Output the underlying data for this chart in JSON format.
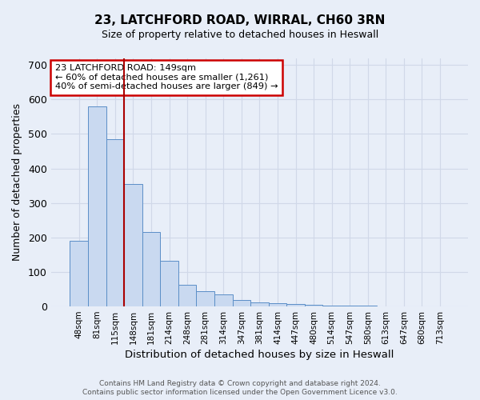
{
  "title1": "23, LATCHFORD ROAD, WIRRAL, CH60 3RN",
  "title2": "Size of property relative to detached houses in Heswall",
  "xlabel": "Distribution of detached houses by size in Heswall",
  "ylabel": "Number of detached properties",
  "categories": [
    "48sqm",
    "81sqm",
    "115sqm",
    "148sqm",
    "181sqm",
    "214sqm",
    "248sqm",
    "281sqm",
    "314sqm",
    "347sqm",
    "381sqm",
    "414sqm",
    "447sqm",
    "480sqm",
    "514sqm",
    "547sqm",
    "580sqm",
    "613sqm",
    "647sqm",
    "680sqm",
    "713sqm"
  ],
  "values": [
    190,
    580,
    485,
    355,
    215,
    133,
    63,
    45,
    36,
    18,
    11,
    10,
    8,
    5,
    2,
    2,
    2,
    1,
    1,
    1,
    1
  ],
  "bar_color": "#c9d9f0",
  "bar_edge_color": "#5b8ec7",
  "background_color": "#e8eef8",
  "grid_color": "#d0d8e8",
  "red_line_index": 3,
  "annotation_text": "23 LATCHFORD ROAD: 149sqm\n← 60% of detached houses are smaller (1,261)\n40% of semi-detached houses are larger (849) →",
  "annotation_box_facecolor": "#ffffff",
  "annotation_edge_color": "#cc0000",
  "footer1": "Contains HM Land Registry data © Crown copyright and database right 2024.",
  "footer2": "Contains public sector information licensed under the Open Government Licence v3.0.",
  "ylim": [
    0,
    720
  ],
  "yticks": [
    0,
    100,
    200,
    300,
    400,
    500,
    600,
    700
  ],
  "title1_fontsize": 11,
  "title2_fontsize": 9
}
